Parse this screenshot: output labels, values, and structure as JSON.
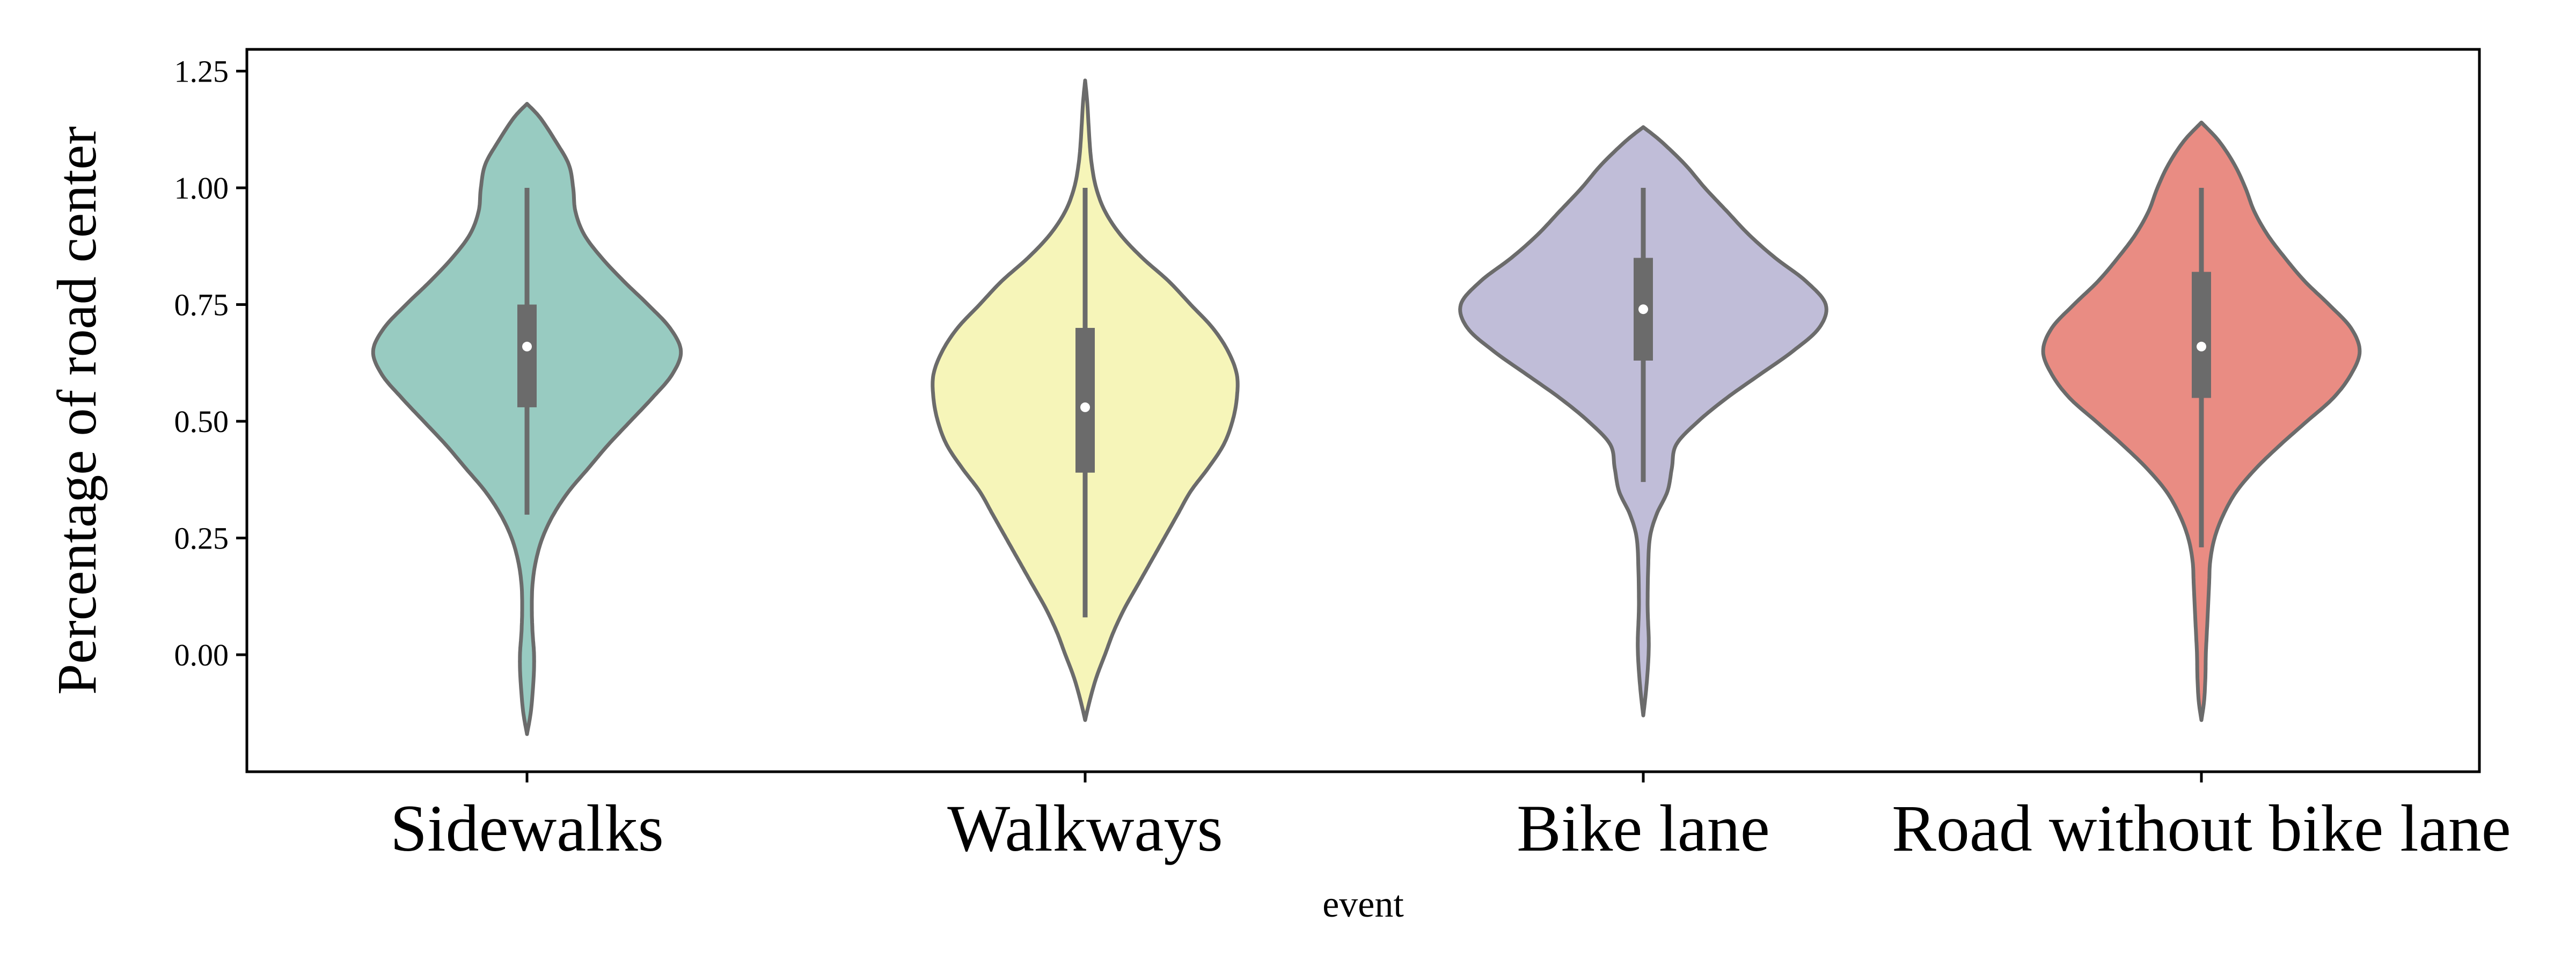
{
  "chart_data": {
    "type": "violin",
    "title": "",
    "xlabel": "event",
    "ylabel": "Percentage of road center",
    "ylim": [
      -0.25,
      1.3
    ],
    "yticks": [
      0.0,
      0.25,
      0.5,
      0.75,
      1.0,
      1.25
    ],
    "ytick_labels": [
      "0.00",
      "0.25",
      "0.50",
      "0.75",
      "1.00",
      "1.25"
    ],
    "categories": [
      "Sidewalks",
      "Walkways",
      "Bike lane",
      "Road without bike lane"
    ],
    "grid": false,
    "series": [
      {
        "category": "Sidewalks",
        "color": "#98CBC1",
        "whisker_low": 0.3,
        "q1": 0.53,
        "median": 0.66,
        "q3": 0.75,
        "whisker_high": 1.0,
        "extent": [
          -0.17,
          1.18
        ],
        "density": [
          [
            -0.17,
            0.0
          ],
          [
            -0.12,
            0.018
          ],
          [
            -0.05,
            0.03
          ],
          [
            0.0,
            0.032
          ],
          [
            0.05,
            0.025
          ],
          [
            0.1,
            0.022
          ],
          [
            0.15,
            0.025
          ],
          [
            0.2,
            0.04
          ],
          [
            0.25,
            0.07
          ],
          [
            0.3,
            0.12
          ],
          [
            0.35,
            0.19
          ],
          [
            0.4,
            0.28
          ],
          [
            0.45,
            0.37
          ],
          [
            0.5,
            0.47
          ],
          [
            0.55,
            0.57
          ],
          [
            0.6,
            0.66
          ],
          [
            0.65,
            0.7
          ],
          [
            0.7,
            0.65
          ],
          [
            0.75,
            0.55
          ],
          [
            0.8,
            0.44
          ],
          [
            0.85,
            0.34
          ],
          [
            0.9,
            0.26
          ],
          [
            0.95,
            0.22
          ],
          [
            1.0,
            0.21
          ],
          [
            1.05,
            0.19
          ],
          [
            1.1,
            0.13
          ],
          [
            1.15,
            0.06
          ],
          [
            1.18,
            0.0
          ]
        ]
      },
      {
        "category": "Walkways",
        "color": "#F6F5B9",
        "whisker_low": 0.08,
        "q1": 0.39,
        "median": 0.53,
        "q3": 0.7,
        "whisker_high": 1.0,
        "extent": [
          -0.14,
          1.23
        ],
        "density": [
          [
            -0.14,
            0.0
          ],
          [
            -0.1,
            0.02
          ],
          [
            -0.05,
            0.05
          ],
          [
            0.0,
            0.09
          ],
          [
            0.05,
            0.13
          ],
          [
            0.1,
            0.18
          ],
          [
            0.15,
            0.24
          ],
          [
            0.2,
            0.3
          ],
          [
            0.25,
            0.36
          ],
          [
            0.3,
            0.42
          ],
          [
            0.35,
            0.48
          ],
          [
            0.4,
            0.56
          ],
          [
            0.45,
            0.63
          ],
          [
            0.5,
            0.67
          ],
          [
            0.55,
            0.69
          ],
          [
            0.6,
            0.69
          ],
          [
            0.65,
            0.65
          ],
          [
            0.7,
            0.58
          ],
          [
            0.75,
            0.48
          ],
          [
            0.8,
            0.38
          ],
          [
            0.85,
            0.26
          ],
          [
            0.9,
            0.16
          ],
          [
            0.95,
            0.09
          ],
          [
            1.0,
            0.05
          ],
          [
            1.05,
            0.03
          ],
          [
            1.1,
            0.02
          ],
          [
            1.18,
            0.01
          ],
          [
            1.23,
            0.0
          ]
        ]
      },
      {
        "category": "Bike lane",
        "color": "#C0BDD8",
        "whisker_low": 0.37,
        "q1": 0.63,
        "median": 0.74,
        "q3": 0.85,
        "whisker_high": 1.0,
        "extent": [
          -0.13,
          1.13
        ],
        "density": [
          [
            -0.13,
            0.0
          ],
          [
            -0.08,
            0.012
          ],
          [
            -0.02,
            0.022
          ],
          [
            0.03,
            0.025
          ],
          [
            0.1,
            0.02
          ],
          [
            0.18,
            0.022
          ],
          [
            0.25,
            0.03
          ],
          [
            0.3,
            0.06
          ],
          [
            0.35,
            0.11
          ],
          [
            0.4,
            0.13
          ],
          [
            0.45,
            0.15
          ],
          [
            0.5,
            0.25
          ],
          [
            0.55,
            0.38
          ],
          [
            0.6,
            0.53
          ],
          [
            0.65,
            0.68
          ],
          [
            0.7,
            0.8
          ],
          [
            0.75,
            0.83
          ],
          [
            0.8,
            0.74
          ],
          [
            0.85,
            0.6
          ],
          [
            0.9,
            0.48
          ],
          [
            0.95,
            0.38
          ],
          [
            1.0,
            0.28
          ],
          [
            1.05,
            0.19
          ],
          [
            1.1,
            0.08
          ],
          [
            1.13,
            0.0
          ]
        ]
      },
      {
        "category": "Road without bike lane",
        "color": "#E98C83",
        "whisker_low": 0.23,
        "q1": 0.55,
        "median": 0.66,
        "q3": 0.82,
        "whisker_high": 1.0,
        "extent": [
          -0.14,
          1.14
        ],
        "density": [
          [
            -0.14,
            0.0
          ],
          [
            -0.1,
            0.012
          ],
          [
            -0.05,
            0.018
          ],
          [
            0.0,
            0.02
          ],
          [
            0.05,
            0.025
          ],
          [
            0.1,
            0.03
          ],
          [
            0.15,
            0.035
          ],
          [
            0.2,
            0.04
          ],
          [
            0.25,
            0.06
          ],
          [
            0.3,
            0.1
          ],
          [
            0.35,
            0.16
          ],
          [
            0.4,
            0.25
          ],
          [
            0.45,
            0.36
          ],
          [
            0.5,
            0.48
          ],
          [
            0.55,
            0.6
          ],
          [
            0.6,
            0.68
          ],
          [
            0.65,
            0.72
          ],
          [
            0.7,
            0.68
          ],
          [
            0.75,
            0.58
          ],
          [
            0.8,
            0.47
          ],
          [
            0.85,
            0.38
          ],
          [
            0.9,
            0.3
          ],
          [
            0.95,
            0.24
          ],
          [
            1.0,
            0.2
          ],
          [
            1.05,
            0.15
          ],
          [
            1.1,
            0.08
          ],
          [
            1.14,
            0.0
          ]
        ]
      }
    ]
  }
}
